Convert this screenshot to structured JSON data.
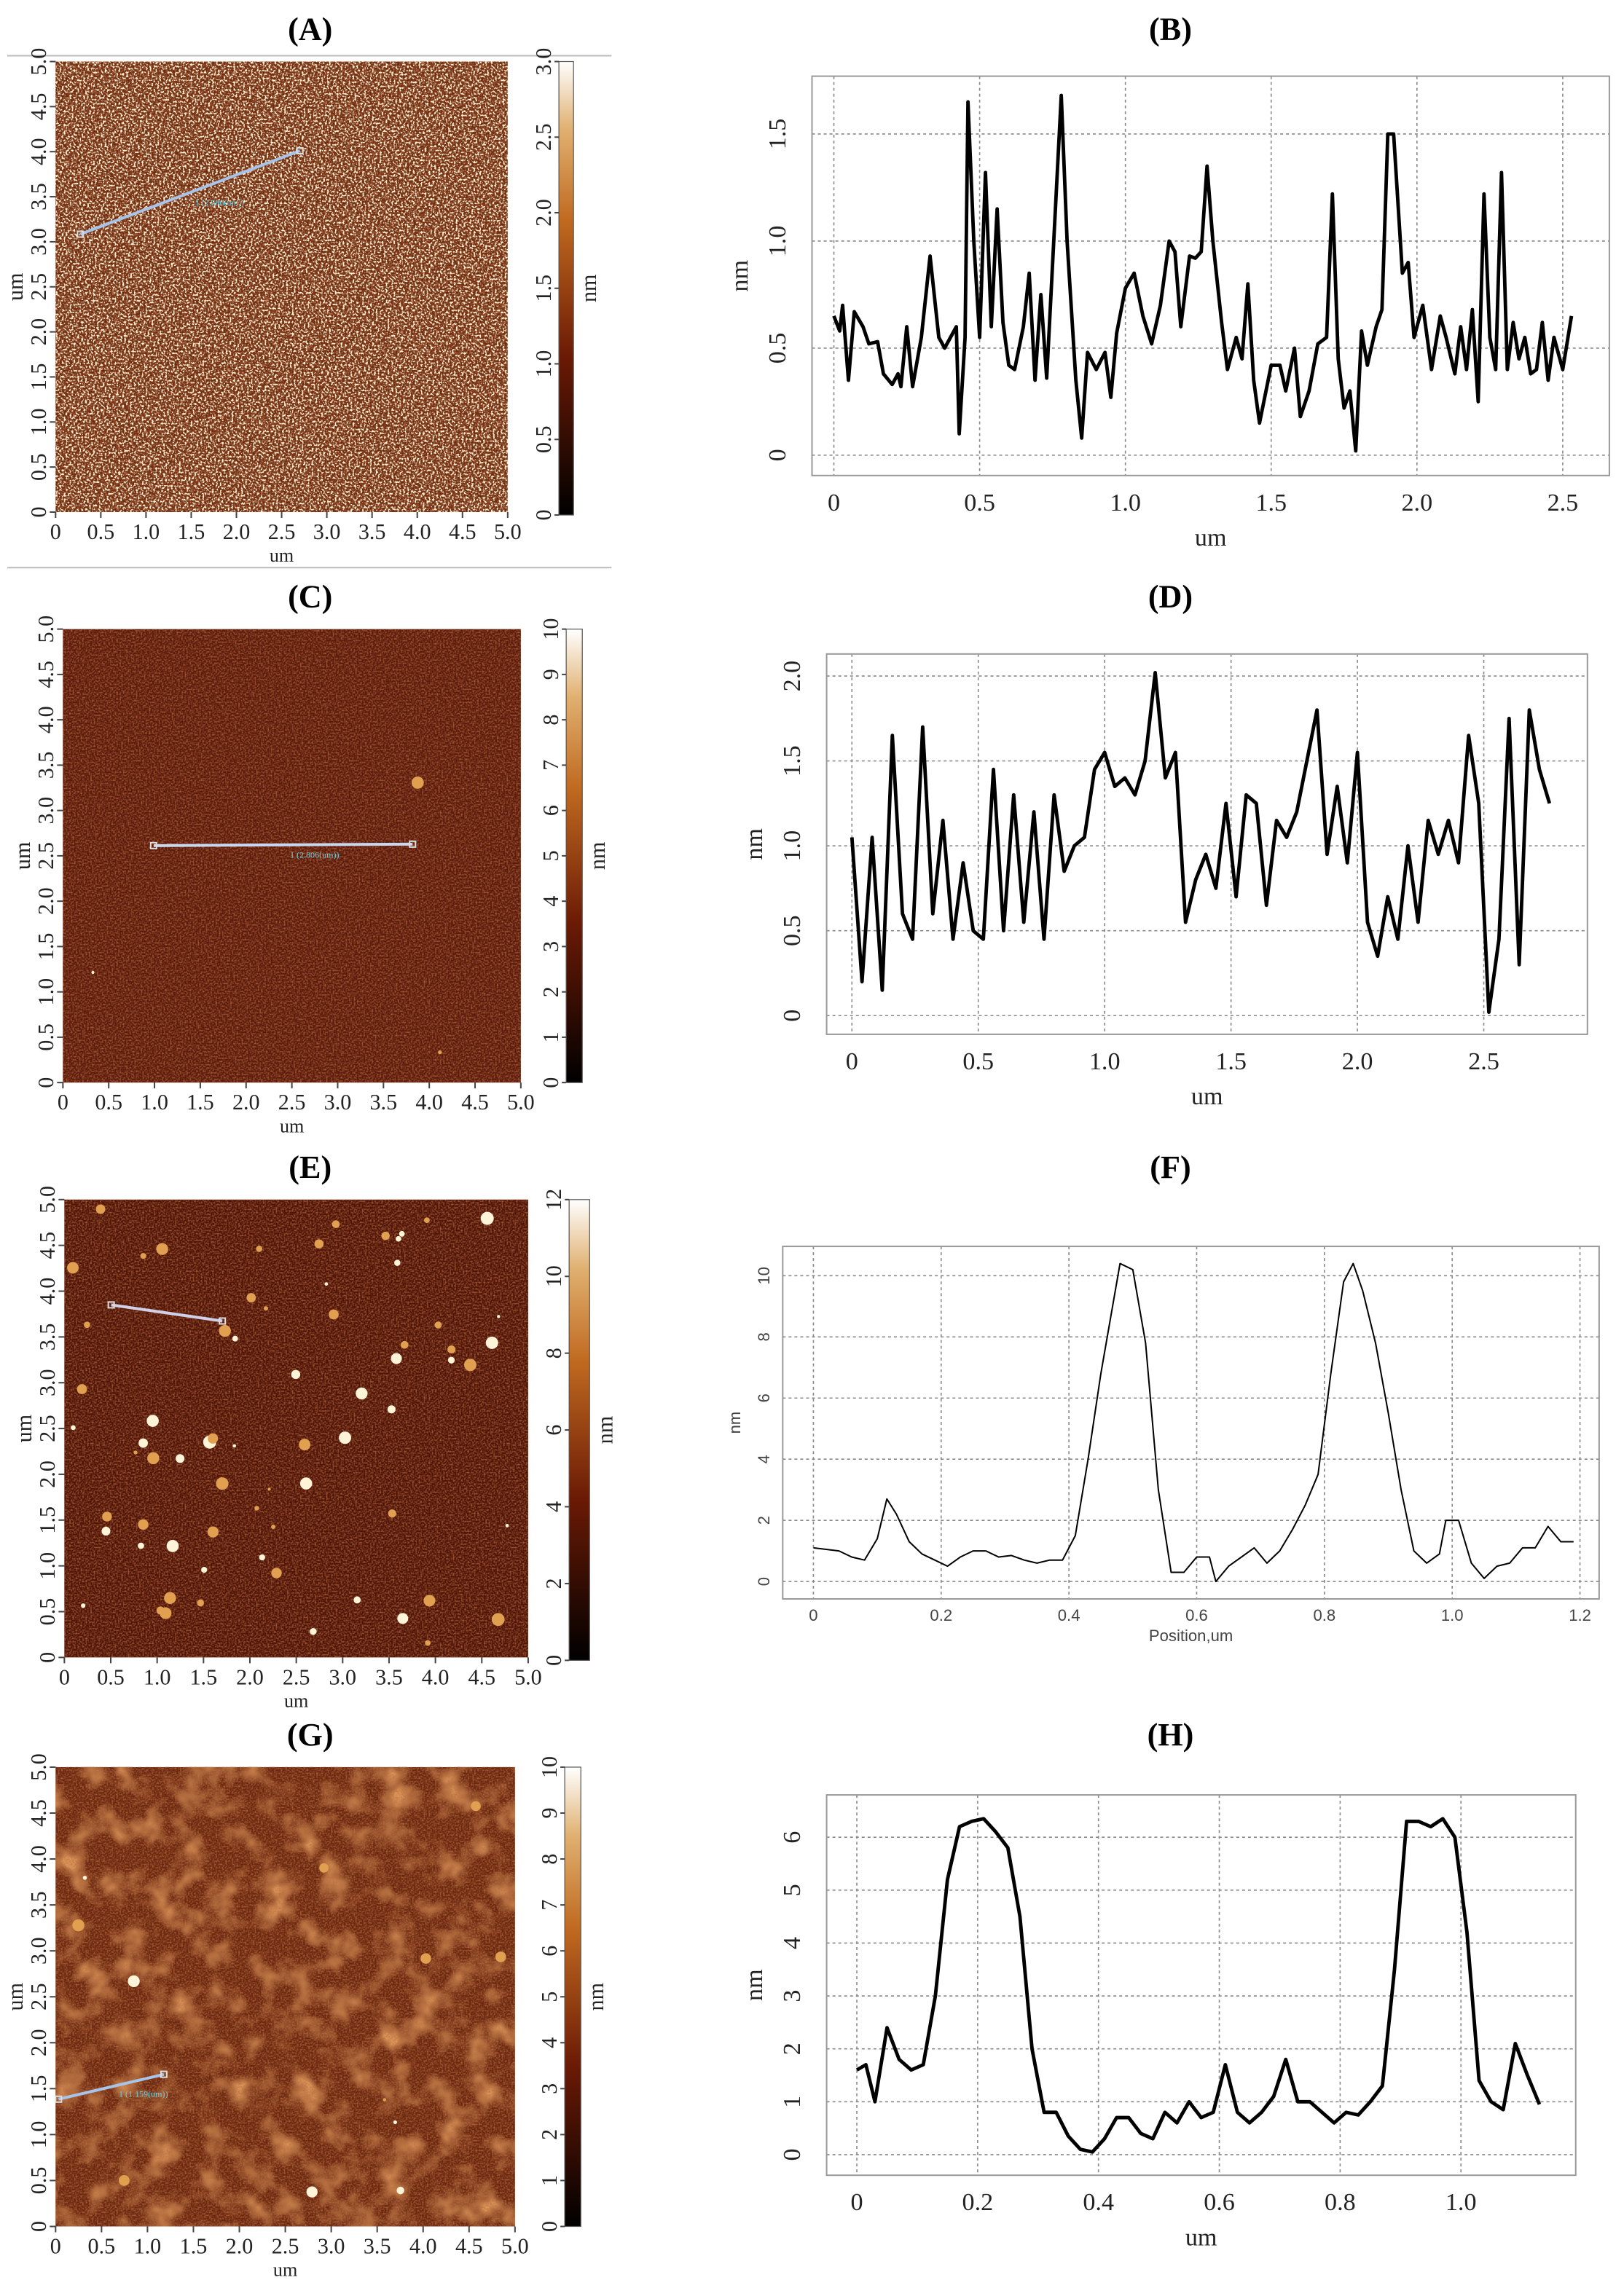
{
  "chart_data": [
    {
      "type": "image",
      "title": "(A)",
      "xlabel": "um",
      "ylabel": "um",
      "xlim": [
        0,
        5
      ],
      "ylim": [
        0,
        5
      ],
      "xticks": [
        0,
        0.5,
        {
          "value": 1,
          "label": "1.0"
        },
        1.5,
        {
          "value": 2,
          "label": "2.0"
        },
        2.5,
        {
          "value": 3,
          "label": "3.0"
        },
        3.5,
        {
          "value": 4,
          "label": "4.0"
        },
        4.5,
        {
          "value": 5,
          "label": "5.0"
        }
      ],
      "yticks": [
        0,
        0.5,
        {
          "value": 1,
          "label": "1.0"
        },
        1.5,
        {
          "value": 2,
          "label": "2.0"
        },
        2.5,
        {
          "value": 3,
          "label": "3.0"
        },
        3.5,
        {
          "value": 4,
          "label": "4.0"
        },
        4.5,
        {
          "value": 5,
          "label": "5.0"
        }
      ],
      "colorbar": {
        "label": "nm",
        "lim": [
          0,
          3
        ],
        "ticks": [
          0,
          0.5,
          {
            "value": 1,
            "label": "1.0"
          },
          1.5,
          {
            "value": 2,
            "label": "2.0"
          },
          2.5,
          {
            "value": 3,
            "label": "3.0"
          }
        ]
      },
      "annotation": "1 (2.566(um))"
    },
    {
      "type": "line",
      "title": "(B)",
      "xlabel": "um",
      "ylabel": "nm",
      "color": "#000000",
      "grid": true,
      "xlim": [
        -0.075,
        2.66
      ],
      "ylim": [
        -0.095,
        1.77
      ],
      "xticks": [
        0,
        0.5,
        {
          "value": 1,
          "label": "1.0"
        },
        1.5,
        {
          "value": 2,
          "label": "2.0"
        },
        2.5
      ],
      "yticks": [
        0,
        0.5,
        {
          "value": 1,
          "label": "1.0"
        },
        1.5
      ],
      "x": [
        0,
        0.02,
        0.03,
        0.05,
        0.07,
        0.1,
        0.12,
        0.15,
        0.17,
        0.2,
        0.22,
        0.23,
        0.25,
        0.27,
        0.3,
        0.33,
        0.36,
        0.38,
        0.4,
        0.42,
        0.43,
        0.45,
        0.46,
        0.48,
        0.5,
        0.52,
        0.54,
        0.56,
        0.58,
        0.6,
        0.62,
        0.65,
        0.67,
        0.69,
        0.71,
        0.73,
        0.78,
        0.8,
        0.83,
        0.85,
        0.87,
        0.9,
        0.93,
        0.95,
        0.97,
        1.0,
        1.03,
        1.06,
        1.09,
        1.12,
        1.15,
        1.17,
        1.19,
        1.22,
        1.24,
        1.26,
        1.28,
        1.3,
        1.33,
        1.35,
        1.38,
        1.4,
        1.42,
        1.44,
        1.46,
        1.5,
        1.53,
        1.55,
        1.58,
        1.6,
        1.63,
        1.66,
        1.69,
        1.71,
        1.73,
        1.75,
        1.77,
        1.79,
        1.81,
        1.83,
        1.86,
        1.88,
        1.9,
        1.92,
        1.95,
        1.97,
        1.99,
        2.02,
        2.05,
        2.08,
        2.1,
        2.13,
        2.15,
        2.17,
        2.19,
        2.21,
        2.23,
        2.25,
        2.27,
        2.29,
        2.31,
        2.33,
        2.35,
        2.37,
        2.39,
        2.41,
        2.43,
        2.45,
        2.47,
        2.5,
        2.53
      ],
      "values": [
        0.65,
        0.58,
        0.7,
        0.35,
        0.67,
        0.6,
        0.52,
        0.53,
        0.38,
        0.33,
        0.38,
        0.32,
        0.6,
        0.32,
        0.55,
        0.93,
        0.55,
        0.5,
        0.55,
        0.6,
        0.1,
        0.55,
        1.65,
        1.0,
        0.55,
        1.32,
        0.6,
        1.15,
        0.62,
        0.42,
        0.4,
        0.6,
        0.85,
        0.35,
        0.75,
        0.36,
        1.68,
        1.0,
        0.35,
        0.08,
        0.48,
        0.4,
        0.48,
        0.27,
        0.57,
        0.78,
        0.85,
        0.65,
        0.52,
        0.7,
        1.0,
        0.95,
        0.6,
        0.93,
        0.92,
        0.95,
        1.35,
        1.0,
        0.62,
        0.4,
        0.55,
        0.45,
        0.8,
        0.35,
        0.15,
        0.42,
        0.42,
        0.3,
        0.5,
        0.18,
        0.3,
        0.52,
        0.55,
        1.22,
        0.45,
        0.22,
        0.3,
        0.02,
        0.58,
        0.42,
        0.6,
        0.68,
        1.5,
        1.5,
        0.85,
        0.9,
        0.55,
        0.7,
        0.4,
        0.65,
        0.55,
        0.38,
        0.6,
        0.4,
        0.68,
        0.25,
        1.22,
        0.55,
        0.4,
        1.32,
        0.4,
        0.62,
        0.45,
        0.55,
        0.38,
        0.4,
        0.62,
        0.35,
        0.55,
        0.4,
        0.65
      ]
    },
    {
      "type": "image",
      "title": "(C)",
      "xlabel": "um",
      "ylabel": "um",
      "xlim": [
        0,
        5
      ],
      "ylim": [
        0,
        5
      ],
      "xticks": [
        0,
        0.5,
        {
          "value": 1,
          "label": "1.0"
        },
        1.5,
        {
          "value": 2,
          "label": "2.0"
        },
        2.5,
        {
          "value": 3,
          "label": "3.0"
        },
        3.5,
        {
          "value": 4,
          "label": "4.0"
        },
        4.5,
        {
          "value": 5,
          "label": "5.0"
        }
      ],
      "yticks": [
        0,
        0.5,
        {
          "value": 1,
          "label": "1.0"
        },
        1.5,
        {
          "value": 2,
          "label": "2.0"
        },
        2.5,
        {
          "value": 3,
          "label": "3.0"
        },
        3.5,
        {
          "value": 4,
          "label": "4.0"
        },
        4.5,
        {
          "value": 5,
          "label": "5.0"
        }
      ],
      "colorbar": {
        "label": "nm",
        "lim": [
          0,
          10
        ],
        "ticks": [
          0,
          1,
          2,
          3,
          4,
          5,
          6,
          7,
          8,
          9,
          10
        ]
      },
      "annotation": "1 (2.806(um))"
    },
    {
      "type": "line",
      "title": "(D)",
      "xlabel": "um",
      "ylabel": "nm",
      "color": "#000000",
      "grid": true,
      "xlim": [
        -0.1,
        2.91
      ],
      "ylim": [
        -0.11,
        2.13
      ],
      "xticks": [
        0,
        0.5,
        {
          "value": 1,
          "label": "1.0"
        },
        1.5,
        {
          "value": 2,
          "label": "2.0"
        },
        2.5
      ],
      "yticks": [
        0,
        0.5,
        {
          "value": 1,
          "label": "1.0"
        },
        1.5,
        {
          "value": 2,
          "label": "2.0"
        }
      ],
      "x": [
        0,
        0.04,
        0.08,
        0.12,
        0.16,
        0.2,
        0.24,
        0.28,
        0.32,
        0.36,
        0.4,
        0.44,
        0.48,
        0.52,
        0.56,
        0.6,
        0.64,
        0.68,
        0.72,
        0.76,
        0.8,
        0.84,
        0.88,
        0.92,
        0.96,
        1,
        1.04,
        1.08,
        1.12,
        1.16,
        1.2,
        1.24,
        1.28,
        1.32,
        1.36,
        1.4,
        1.44,
        1.48,
        1.52,
        1.56,
        1.6,
        1.64,
        1.68,
        1.72,
        1.76,
        1.8,
        1.84,
        1.88,
        1.92,
        1.96,
        2,
        2.04,
        2.08,
        2.12,
        2.16,
        2.2,
        2.24,
        2.28,
        2.32,
        2.36,
        2.4,
        2.44,
        2.48,
        2.52,
        2.56,
        2.6,
        2.64,
        2.68,
        2.72,
        2.76
      ],
      "values": [
        1.05,
        0.2,
        1.05,
        0.15,
        1.65,
        0.6,
        0.45,
        1.7,
        0.6,
        1.15,
        0.45,
        0.9,
        0.5,
        0.45,
        1.45,
        0.5,
        1.3,
        0.55,
        1.2,
        0.45,
        1.3,
        0.85,
        1.0,
        1.05,
        1.45,
        1.55,
        1.35,
        1.4,
        1.3,
        1.5,
        2.02,
        1.4,
        1.55,
        0.55,
        0.8,
        0.95,
        0.75,
        1.25,
        0.7,
        1.3,
        1.25,
        0.65,
        1.15,
        1.05,
        1.2,
        1.5,
        1.8,
        0.95,
        1.35,
        0.9,
        1.55,
        0.55,
        0.35,
        0.7,
        0.45,
        1.0,
        0.55,
        1.15,
        0.95,
        1.15,
        0.9,
        1.65,
        1.25,
        0.02,
        0.45,
        1.75,
        0.3,
        1.8,
        1.45,
        1.25
      ]
    },
    {
      "type": "image",
      "title": "(E)",
      "xlabel": "um",
      "ylabel": "um",
      "xlim": [
        0,
        5
      ],
      "ylim": [
        0,
        5
      ],
      "xticks": [
        0,
        0.5,
        {
          "value": 1,
          "label": "1.0"
        },
        1.5,
        {
          "value": 2,
          "label": "2.0"
        },
        2.5,
        {
          "value": 3,
          "label": "3.0"
        },
        3.5,
        {
          "value": 4,
          "label": "4.0"
        },
        4.5,
        {
          "value": 5,
          "label": "5.0"
        }
      ],
      "yticks": [
        0,
        0.5,
        {
          "value": 1,
          "label": "1.0"
        },
        1.5,
        {
          "value": 2,
          "label": "2.0"
        },
        2.5,
        {
          "value": 3,
          "label": "3.0"
        },
        3.5,
        {
          "value": 4,
          "label": "4.0"
        },
        4.5,
        {
          "value": 5,
          "label": "5.0"
        }
      ],
      "colorbar": {
        "label": "nm",
        "lim": [
          0,
          12
        ],
        "ticks": [
          0,
          2,
          4,
          6,
          8,
          10,
          12
        ]
      }
    },
    {
      "type": "line",
      "title": "(F)",
      "xlabel": "Position,um",
      "ylabel": "nm",
      "color": "#000000",
      "grid": true,
      "xlim": [
        -0.048,
        1.23
      ],
      "ylim": [
        -0.57,
        10.96
      ],
      "xticks": [
        0,
        0.2,
        0.4,
        0.6,
        0.8,
        {
          "value": 1,
          "label": "1.0"
        },
        1.2
      ],
      "yticks": [
        0,
        2,
        4,
        6,
        8,
        10
      ],
      "x": [
        0,
        0.02,
        0.04,
        0.06,
        0.08,
        0.1,
        0.115,
        0.13,
        0.15,
        0.17,
        0.19,
        0.21,
        0.23,
        0.25,
        0.27,
        0.29,
        0.31,
        0.33,
        0.35,
        0.37,
        0.39,
        0.41,
        0.43,
        0.45,
        0.47,
        0.48,
        0.5,
        0.52,
        0.54,
        0.56,
        0.58,
        0.6,
        0.62,
        0.63,
        0.65,
        0.67,
        0.69,
        0.71,
        0.73,
        0.75,
        0.77,
        0.79,
        0.81,
        0.83,
        0.845,
        0.86,
        0.88,
        0.9,
        0.92,
        0.94,
        0.96,
        0.98,
        0.99,
        1.01,
        1.03,
        1.05,
        1.07,
        1.09,
        1.11,
        1.13,
        1.15,
        1.17,
        1.19
      ],
      "values": [
        1.1,
        1.05,
        1.0,
        0.8,
        0.7,
        1.4,
        2.7,
        2.2,
        1.3,
        0.9,
        0.7,
        0.5,
        0.8,
        1.0,
        1.0,
        0.8,
        0.85,
        0.7,
        0.6,
        0.7,
        0.7,
        1.5,
        4.0,
        6.8,
        9.2,
        10.4,
        10.2,
        7.8,
        3.0,
        0.3,
        0.3,
        0.8,
        0.8,
        0,
        0.5,
        0.8,
        1.1,
        0.6,
        1.0,
        1.7,
        2.5,
        3.5,
        6.8,
        9.8,
        10.4,
        9.5,
        7.8,
        5.5,
        3.0,
        1.0,
        0.6,
        0.9,
        2.0,
        2.0,
        0.6,
        0.1,
        0.5,
        0.6,
        1.1,
        1.1,
        1.8,
        1.3,
        1.3
      ]
    },
    {
      "type": "image",
      "title": "(G)",
      "xlabel": "um",
      "ylabel": "um",
      "xlim": [
        0,
        5
      ],
      "ylim": [
        0,
        5
      ],
      "xticks": [
        0,
        0.5,
        {
          "value": 1,
          "label": "1.0"
        },
        1.5,
        {
          "value": 2,
          "label": "2.0"
        },
        2.5,
        {
          "value": 3,
          "label": "3.0"
        },
        3.5,
        {
          "value": 4,
          "label": "4.0"
        },
        4.5,
        {
          "value": 5,
          "label": "5.0"
        }
      ],
      "yticks": [
        0,
        0.5,
        {
          "value": 1,
          "label": "1.0"
        },
        1.5,
        {
          "value": 2,
          "label": "2.0"
        },
        2.5,
        {
          "value": 3,
          "label": "3.0"
        },
        3.5,
        {
          "value": 4,
          "label": "4.0"
        },
        4.5,
        {
          "value": 5,
          "label": "5.0"
        }
      ],
      "colorbar": {
        "label": "nm",
        "lim": [
          0,
          10
        ],
        "ticks": [
          0,
          1,
          2,
          3,
          4,
          5,
          6,
          7,
          8,
          9,
          10
        ]
      },
      "annotation": "1 (1.159(um))"
    },
    {
      "type": "line",
      "title": "(H)",
      "xlabel": "um",
      "ylabel": "nm",
      "color": "#000000",
      "grid": true,
      "xlim": [
        -0.05,
        1.19
      ],
      "ylim": [
        -0.39,
        6.8
      ],
      "xticks": [
        0,
        0.2,
        0.4,
        0.6,
        0.8,
        {
          "value": 1,
          "label": "1.0"
        }
      ],
      "yticks": [
        0,
        1,
        2,
        3,
        4,
        5,
        6
      ],
      "x": [
        0,
        0.015,
        0.03,
        0.05,
        0.07,
        0.09,
        0.11,
        0.13,
        0.15,
        0.17,
        0.19,
        0.21,
        0.23,
        0.25,
        0.27,
        0.29,
        0.31,
        0.33,
        0.35,
        0.37,
        0.39,
        0.41,
        0.43,
        0.45,
        0.47,
        0.49,
        0.51,
        0.53,
        0.55,
        0.57,
        0.59,
        0.61,
        0.63,
        0.65,
        0.67,
        0.69,
        0.71,
        0.73,
        0.75,
        0.77,
        0.79,
        0.81,
        0.83,
        0.85,
        0.87,
        0.89,
        0.91,
        0.93,
        0.95,
        0.97,
        0.99,
        1.01,
        1.03,
        1.05,
        1.07,
        1.09,
        1.11,
        1.13
      ],
      "values": [
        1.6,
        1.7,
        1.0,
        2.4,
        1.8,
        1.6,
        1.7,
        3.0,
        5.2,
        6.2,
        6.3,
        6.35,
        6.1,
        5.8,
        4.5,
        2.0,
        0.8,
        0.8,
        0.35,
        0.1,
        0.05,
        0.3,
        0.7,
        0.7,
        0.4,
        0.3,
        0.8,
        0.6,
        1.0,
        0.7,
        0.8,
        1.7,
        0.8,
        0.6,
        0.8,
        1.1,
        1.8,
        1.0,
        1.0,
        0.8,
        0.6,
        0.8,
        0.75,
        1.0,
        1.3,
        3.5,
        6.3,
        6.3,
        6.2,
        6.35,
        6.0,
        4.2,
        1.4,
        1.0,
        0.85,
        2.1,
        1.5,
        0.95
      ]
    }
  ]
}
